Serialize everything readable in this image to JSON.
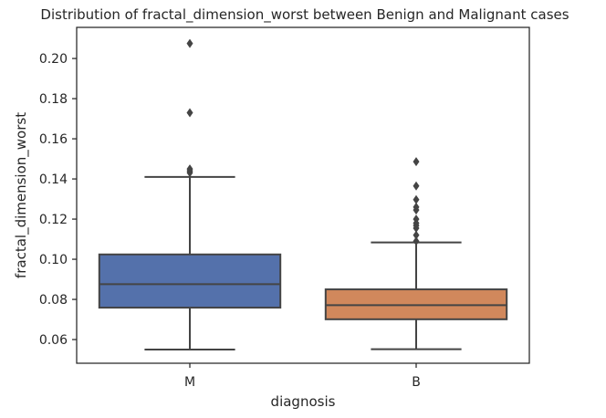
{
  "chart_data": {
    "type": "box",
    "title": "Distribution of fractal_dimension_worst between Benign and Malignant cases",
    "xlabel": "diagnosis",
    "ylabel": "fractal_dimension_worst",
    "ylim": [
      0.0482,
      0.2155
    ],
    "yticks": [
      0.06,
      0.08,
      0.1,
      0.12,
      0.14,
      0.16,
      0.18,
      0.2
    ],
    "ytick_labels": [
      "0.06",
      "0.08",
      "0.10",
      "0.12",
      "0.14",
      "0.16",
      "0.18",
      "0.20"
    ],
    "grid": false,
    "categories": [
      "M",
      "B"
    ],
    "boxes": [
      {
        "category": "M",
        "color": "#5471ab",
        "q1": 0.0759,
        "median": 0.0876,
        "q3": 0.1024,
        "whisker_low": 0.055,
        "whisker_high": 0.141,
        "outliers": [
          0.2075,
          0.173,
          0.145,
          0.144,
          0.1431
        ]
      },
      {
        "category": "B",
        "color": "#d1885c",
        "q1": 0.0701,
        "median": 0.0771,
        "q3": 0.085,
        "whisker_low": 0.0552,
        "whisker_high": 0.1084,
        "outliers": [
          0.1486,
          0.1365,
          0.1297,
          0.126,
          0.1245,
          0.12,
          0.118,
          0.1168,
          0.1155,
          0.112,
          0.109
        ]
      }
    ]
  }
}
